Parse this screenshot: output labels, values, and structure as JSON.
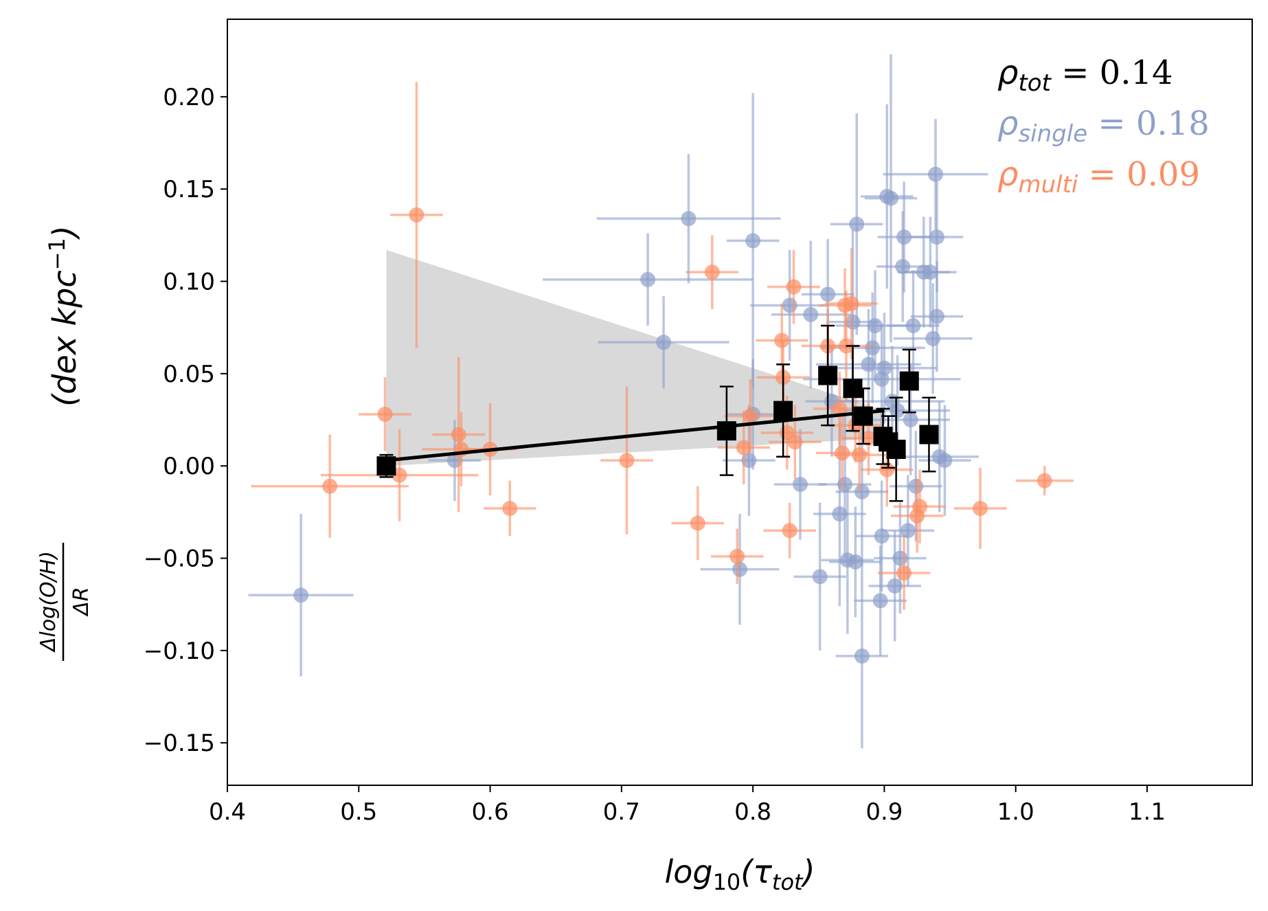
{
  "chart_data": {
    "type": "scatter",
    "xlabel_main": "log",
    "xlabel_sub": "10",
    "xlabel_paren_open": "(τ",
    "xlabel_paren_sub": "tot",
    "xlabel_paren_close": ")",
    "ylabel_num": "Δlog(O/H)",
    "ylabel_den": "ΔR",
    "ylabel_units": "(dex kpc",
    "ylabel_units_sup": "−1",
    "ylabel_units_close": ")",
    "xlim": [
      0.4,
      1.18
    ],
    "ylim": [
      -0.173,
      0.242
    ],
    "xticks": [
      0.4,
      0.5,
      0.6,
      0.7,
      0.8,
      0.9,
      1.0,
      1.1
    ],
    "xtick_labels": [
      "0.4",
      "0.5",
      "0.6",
      "0.7",
      "0.8",
      "0.9",
      "1.0",
      "1.1"
    ],
    "yticks": [
      -0.15,
      -0.1,
      -0.05,
      0.0,
      0.05,
      0.1,
      0.15,
      0.2
    ],
    "ytick_labels": [
      "−0.15",
      "−0.10",
      "−0.05",
      "0.00",
      "0.05",
      "0.10",
      "0.15",
      "0.20"
    ],
    "colors": {
      "single": "#8da0cb",
      "multi": "#fc8d62",
      "binned": "#000000",
      "band": "#d9d9d9"
    },
    "annotations": [
      {
        "symbol": "ρ",
        "sub": "tot",
        "text": " = 0.14",
        "color": "#000000"
      },
      {
        "symbol": "ρ",
        "sub": "single",
        "text": " = 0.18",
        "color": "#8da0cb"
      },
      {
        "symbol": "ρ",
        "sub": "multi",
        "text": " = 0.09",
        "color": "#fc8d62"
      }
    ],
    "confidence_band": {
      "upper": [
        [
          0.521,
          0.117
        ],
        [
          0.9,
          0.03
        ]
      ],
      "lower": [
        [
          0.521,
          0.0
        ],
        [
          0.9,
          0.015
        ]
      ]
    },
    "fit_line": [
      [
        0.521,
        0.003
      ],
      [
        0.9,
        0.03
      ]
    ],
    "series": [
      {
        "name": "single",
        "points": [
          [
            0.456,
            -0.07,
            0.04,
            0.044
          ],
          [
            0.573,
            0.003,
            0.02,
            0.022
          ],
          [
            0.72,
            0.101,
            0.08,
            0.025
          ],
          [
            0.732,
            0.067,
            0.05,
            0.025
          ],
          [
            0.751,
            0.134,
            0.07,
            0.035
          ],
          [
            0.79,
            -0.056,
            0.03,
            0.03
          ],
          [
            0.8,
            0.122,
            0.02,
            0.08
          ],
          [
            0.8,
            0.028,
            0.02,
            0.03
          ],
          [
            0.797,
            0.003,
            0.02,
            0.03
          ],
          [
            0.828,
            0.087,
            0.03,
            0.03
          ],
          [
            0.836,
            -0.01,
            0.02,
            0.03
          ],
          [
            0.844,
            0.082,
            0.03,
            0.04
          ],
          [
            0.851,
            -0.06,
            0.02,
            0.04
          ],
          [
            0.857,
            0.093,
            0.02,
            0.03
          ],
          [
            0.86,
            0.035,
            0.02,
            0.03
          ],
          [
            0.866,
            -0.026,
            0.02,
            0.05
          ],
          [
            0.87,
            -0.01,
            0.02,
            0.04
          ],
          [
            0.872,
            -0.051,
            0.02,
            0.04
          ],
          [
            0.876,
            0.078,
            0.02,
            0.05
          ],
          [
            0.878,
            -0.052,
            0.02,
            0.03
          ],
          [
            0.879,
            0.131,
            0.02,
            0.06
          ],
          [
            0.883,
            -0.014,
            0.02,
            0.04
          ],
          [
            0.883,
            -0.103,
            0.02,
            0.05
          ],
          [
            0.888,
            0.055,
            0.04,
            0.03
          ],
          [
            0.891,
            0.064,
            0.04,
            0.03
          ],
          [
            0.893,
            0.076,
            0.03,
            0.03
          ],
          [
            0.897,
            -0.073,
            0.02,
            0.03
          ],
          [
            0.898,
            -0.038,
            0.02,
            0.03
          ],
          [
            0.898,
            0.047,
            0.06,
            0.03
          ],
          [
            0.9,
            0.053,
            0.04,
            0.03
          ],
          [
            0.902,
            0.146,
            0.02,
            0.05
          ],
          [
            0.905,
            0.145,
            0.02,
            0.078
          ],
          [
            0.906,
            0.035,
            0.04,
            0.03
          ],
          [
            0.908,
            -0.065,
            0.02,
            0.03
          ],
          [
            0.91,
            0.03,
            0.04,
            0.03
          ],
          [
            0.912,
            -0.05,
            0.02,
            0.03
          ],
          [
            0.914,
            0.108,
            0.02,
            0.03
          ],
          [
            0.915,
            0.124,
            0.02,
            0.03
          ],
          [
            0.918,
            -0.035,
            0.02,
            0.03
          ],
          [
            0.92,
            0.025,
            0.03,
            0.03
          ],
          [
            0.922,
            0.076,
            0.02,
            0.03
          ],
          [
            0.924,
            -0.011,
            0.02,
            0.03
          ],
          [
            0.93,
            0.105,
            0.02,
            0.03
          ],
          [
            0.935,
            0.105,
            0.02,
            0.03
          ],
          [
            0.937,
            0.069,
            0.03,
            0.03
          ],
          [
            0.939,
            0.158,
            0.04,
            0.03
          ],
          [
            0.94,
            0.124,
            0.02,
            0.03
          ],
          [
            0.94,
            0.081,
            0.02,
            0.03
          ],
          [
            0.942,
            0.005,
            0.03,
            0.03
          ],
          [
            0.946,
            0.003,
            0.02,
            0.03
          ]
        ]
      },
      {
        "name": "multi",
        "points": [
          [
            0.478,
            -0.011,
            0.06,
            0.028
          ],
          [
            0.52,
            0.028,
            0.02,
            0.02
          ],
          [
            0.531,
            -0.005,
            0.06,
            0.025
          ],
          [
            0.544,
            0.136,
            0.02,
            0.072
          ],
          [
            0.576,
            0.017,
            0.02,
            0.042
          ],
          [
            0.578,
            0.009,
            0.03,
            0.02
          ],
          [
            0.6,
            0.009,
            0.02,
            0.025
          ],
          [
            0.615,
            -0.023,
            0.02,
            0.015
          ],
          [
            0.704,
            0.003,
            0.02,
            0.04
          ],
          [
            0.758,
            -0.031,
            0.02,
            0.02
          ],
          [
            0.769,
            0.105,
            0.02,
            0.02
          ],
          [
            0.788,
            -0.049,
            0.02,
            0.015
          ],
          [
            0.793,
            0.01,
            0.02,
            0.02
          ],
          [
            0.798,
            0.027,
            0.02,
            0.02
          ],
          [
            0.822,
            0.068,
            0.02,
            0.02
          ],
          [
            0.823,
            0.048,
            0.02,
            0.02
          ],
          [
            0.826,
            0.018,
            0.02,
            0.02
          ],
          [
            0.828,
            -0.035,
            0.02,
            0.015
          ],
          [
            0.831,
            0.097,
            0.02,
            0.02
          ],
          [
            0.832,
            0.013,
            0.02,
            0.02
          ],
          [
            0.857,
            0.065,
            0.02,
            0.02
          ],
          [
            0.866,
            0.031,
            0.02,
            0.02
          ],
          [
            0.868,
            0.007,
            0.02,
            0.02
          ],
          [
            0.87,
            0.087,
            0.02,
            0.02
          ],
          [
            0.871,
            0.065,
            0.02,
            0.03
          ],
          [
            0.875,
            0.088,
            0.02,
            0.03
          ],
          [
            0.878,
            0.022,
            0.02,
            0.02
          ],
          [
            0.881,
            0.006,
            0.02,
            0.02
          ],
          [
            0.888,
            0.015,
            0.02,
            0.02
          ],
          [
            0.902,
            -0.002,
            0.02,
            0.02
          ],
          [
            0.915,
            -0.058,
            0.02,
            0.02
          ],
          [
            0.925,
            -0.027,
            0.02,
            0.02
          ],
          [
            0.927,
            -0.022,
            0.02,
            0.02
          ],
          [
            0.973,
            -0.023,
            0.02,
            0.022
          ],
          [
            1.022,
            -0.008,
            0.022,
            0.008
          ]
        ]
      },
      {
        "name": "binned",
        "points": [
          [
            0.521,
            0.0,
            0.0,
            0.006
          ],
          [
            0.78,
            0.019,
            0.0,
            0.024
          ],
          [
            0.823,
            0.03,
            0.0,
            0.025
          ],
          [
            0.857,
            0.049,
            0.0,
            0.027
          ],
          [
            0.876,
            0.042,
            0.0,
            0.023
          ],
          [
            0.884,
            0.027,
            0.0,
            0.015
          ],
          [
            0.899,
            0.016,
            0.0,
            0.015
          ],
          [
            0.903,
            0.013,
            0.0,
            0.014
          ],
          [
            0.909,
            0.009,
            0.0,
            0.028
          ],
          [
            0.919,
            0.046,
            0.0,
            0.017
          ],
          [
            0.934,
            0.017,
            0.0,
            0.02
          ]
        ]
      }
    ]
  }
}
